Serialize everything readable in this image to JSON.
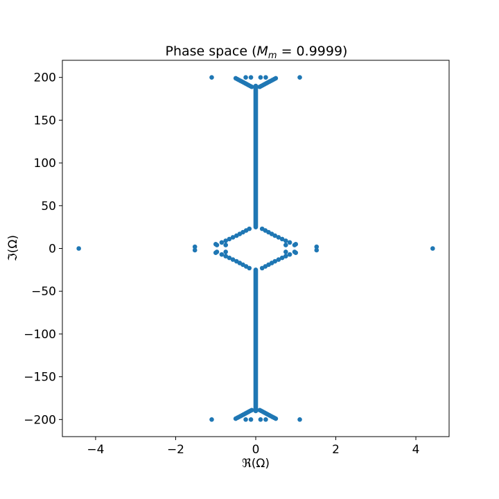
{
  "chart_data": {
    "type": "scatter",
    "title_prefix": "Phase space (",
    "title_math_var": "M",
    "title_math_sub": "m",
    "title_math_rest": " = 0.9999)",
    "xlabel": "ℜ(Ω)",
    "ylabel": "ℑ(Ω)",
    "xlim": [
      -4.83,
      4.83
    ],
    "ylim": [
      -220,
      220
    ],
    "grid": false,
    "marker_color": "#1f77b4",
    "x_ticks": [
      {
        "value": -4,
        "label": "−4"
      },
      {
        "value": -2,
        "label": "−2"
      },
      {
        "value": 0,
        "label": "0"
      },
      {
        "value": 2,
        "label": "2"
      },
      {
        "value": 4,
        "label": "4"
      }
    ],
    "y_ticks": [
      {
        "value": -200,
        "label": "−200"
      },
      {
        "value": -150,
        "label": "−150"
      },
      {
        "value": -100,
        "label": "−100"
      },
      {
        "value": -50,
        "label": "−50"
      },
      {
        "value": 0,
        "label": "0"
      },
      {
        "value": 50,
        "label": "50"
      },
      {
        "value": 100,
        "label": "100"
      },
      {
        "value": 150,
        "label": "150"
      },
      {
        "value": 200,
        "label": "200"
      }
    ],
    "series": [
      {
        "points": [
          [
            -4.42,
            0
          ],
          [
            4.42,
            0
          ],
          [
            -1.52,
            2
          ],
          [
            -1.52,
            -2
          ],
          [
            1.52,
            2
          ],
          [
            1.52,
            -2
          ],
          [
            -1.1,
            200
          ],
          [
            1.1,
            200
          ],
          [
            -1.1,
            -200
          ],
          [
            1.1,
            -200
          ],
          [
            -0.25,
            200
          ],
          [
            -0.12,
            200
          ],
          [
            0.12,
            200
          ],
          [
            0.25,
            200
          ],
          [
            -0.25,
            -200
          ],
          [
            -0.12,
            -200
          ],
          [
            0.12,
            -200
          ],
          [
            0.25,
            -200
          ],
          [
            -0.5,
            199
          ],
          [
            -0.46,
            198
          ],
          [
            -0.42,
            197
          ],
          [
            -0.38,
            196
          ],
          [
            -0.34,
            195
          ],
          [
            -0.3,
            194
          ],
          [
            -0.26,
            193
          ],
          [
            -0.22,
            192
          ],
          [
            -0.18,
            191
          ],
          [
            -0.14,
            190
          ],
          [
            -0.1,
            189
          ],
          [
            0.5,
            199
          ],
          [
            0.46,
            198
          ],
          [
            0.42,
            197
          ],
          [
            0.38,
            196
          ],
          [
            0.34,
            195
          ],
          [
            0.3,
            194
          ],
          [
            0.26,
            193
          ],
          [
            0.22,
            192
          ],
          [
            0.18,
            191
          ],
          [
            0.14,
            190
          ],
          [
            0.1,
            189
          ],
          [
            -0.5,
            -199
          ],
          [
            -0.46,
            -198
          ],
          [
            -0.42,
            -197
          ],
          [
            -0.38,
            -196
          ],
          [
            -0.34,
            -195
          ],
          [
            -0.3,
            -194
          ],
          [
            -0.26,
            -193
          ],
          [
            -0.22,
            -192
          ],
          [
            -0.18,
            -191
          ],
          [
            -0.14,
            -190
          ],
          [
            -0.1,
            -189
          ],
          [
            0.5,
            -199
          ],
          [
            0.46,
            -198
          ],
          [
            0.42,
            -197
          ],
          [
            0.38,
            -196
          ],
          [
            0.34,
            -195
          ],
          [
            0.3,
            -194
          ],
          [
            0.26,
            -193
          ],
          [
            0.22,
            -192
          ],
          [
            0.18,
            -191
          ],
          [
            0.14,
            -190
          ],
          [
            0.1,
            -189
          ],
          [
            -1.0,
            5
          ],
          [
            -0.97,
            4
          ],
          [
            -0.85,
            7
          ],
          [
            -0.75,
            9
          ],
          [
            -0.66,
            11
          ],
          [
            -0.57,
            13
          ],
          [
            -0.48,
            15
          ],
          [
            -0.4,
            17
          ],
          [
            -0.32,
            19
          ],
          [
            -0.24,
            21
          ],
          [
            -0.16,
            23
          ],
          [
            -1.0,
            -5
          ],
          [
            -0.97,
            -4
          ],
          [
            -0.85,
            -7
          ],
          [
            -0.75,
            -9
          ],
          [
            -0.66,
            -11
          ],
          [
            -0.57,
            -13
          ],
          [
            -0.48,
            -15
          ],
          [
            -0.4,
            -17
          ],
          [
            -0.32,
            -19
          ],
          [
            -0.24,
            -21
          ],
          [
            -0.16,
            -23
          ],
          [
            1.0,
            5
          ],
          [
            0.97,
            4
          ],
          [
            0.85,
            7
          ],
          [
            0.75,
            9
          ],
          [
            0.66,
            11
          ],
          [
            0.57,
            13
          ],
          [
            0.48,
            15
          ],
          [
            0.4,
            17
          ],
          [
            0.32,
            19
          ],
          [
            0.24,
            21
          ],
          [
            0.16,
            23
          ],
          [
            1.0,
            -5
          ],
          [
            0.97,
            -4
          ],
          [
            0.85,
            -7
          ],
          [
            0.75,
            -9
          ],
          [
            0.66,
            -11
          ],
          [
            0.57,
            -13
          ],
          [
            0.48,
            -15
          ],
          [
            0.4,
            -17
          ],
          [
            0.32,
            -19
          ],
          [
            0.24,
            -21
          ],
          [
            0.16,
            -23
          ],
          [
            -0.75,
            4
          ],
          [
            -0.75,
            -4
          ],
          [
            0.75,
            4
          ],
          [
            0.75,
            -4
          ]
        ],
        "bands": [
          {
            "x": 0,
            "y_from": 25,
            "y_to": 190
          },
          {
            "x": 0,
            "y_from": -190,
            "y_to": -25
          }
        ]
      }
    ]
  }
}
